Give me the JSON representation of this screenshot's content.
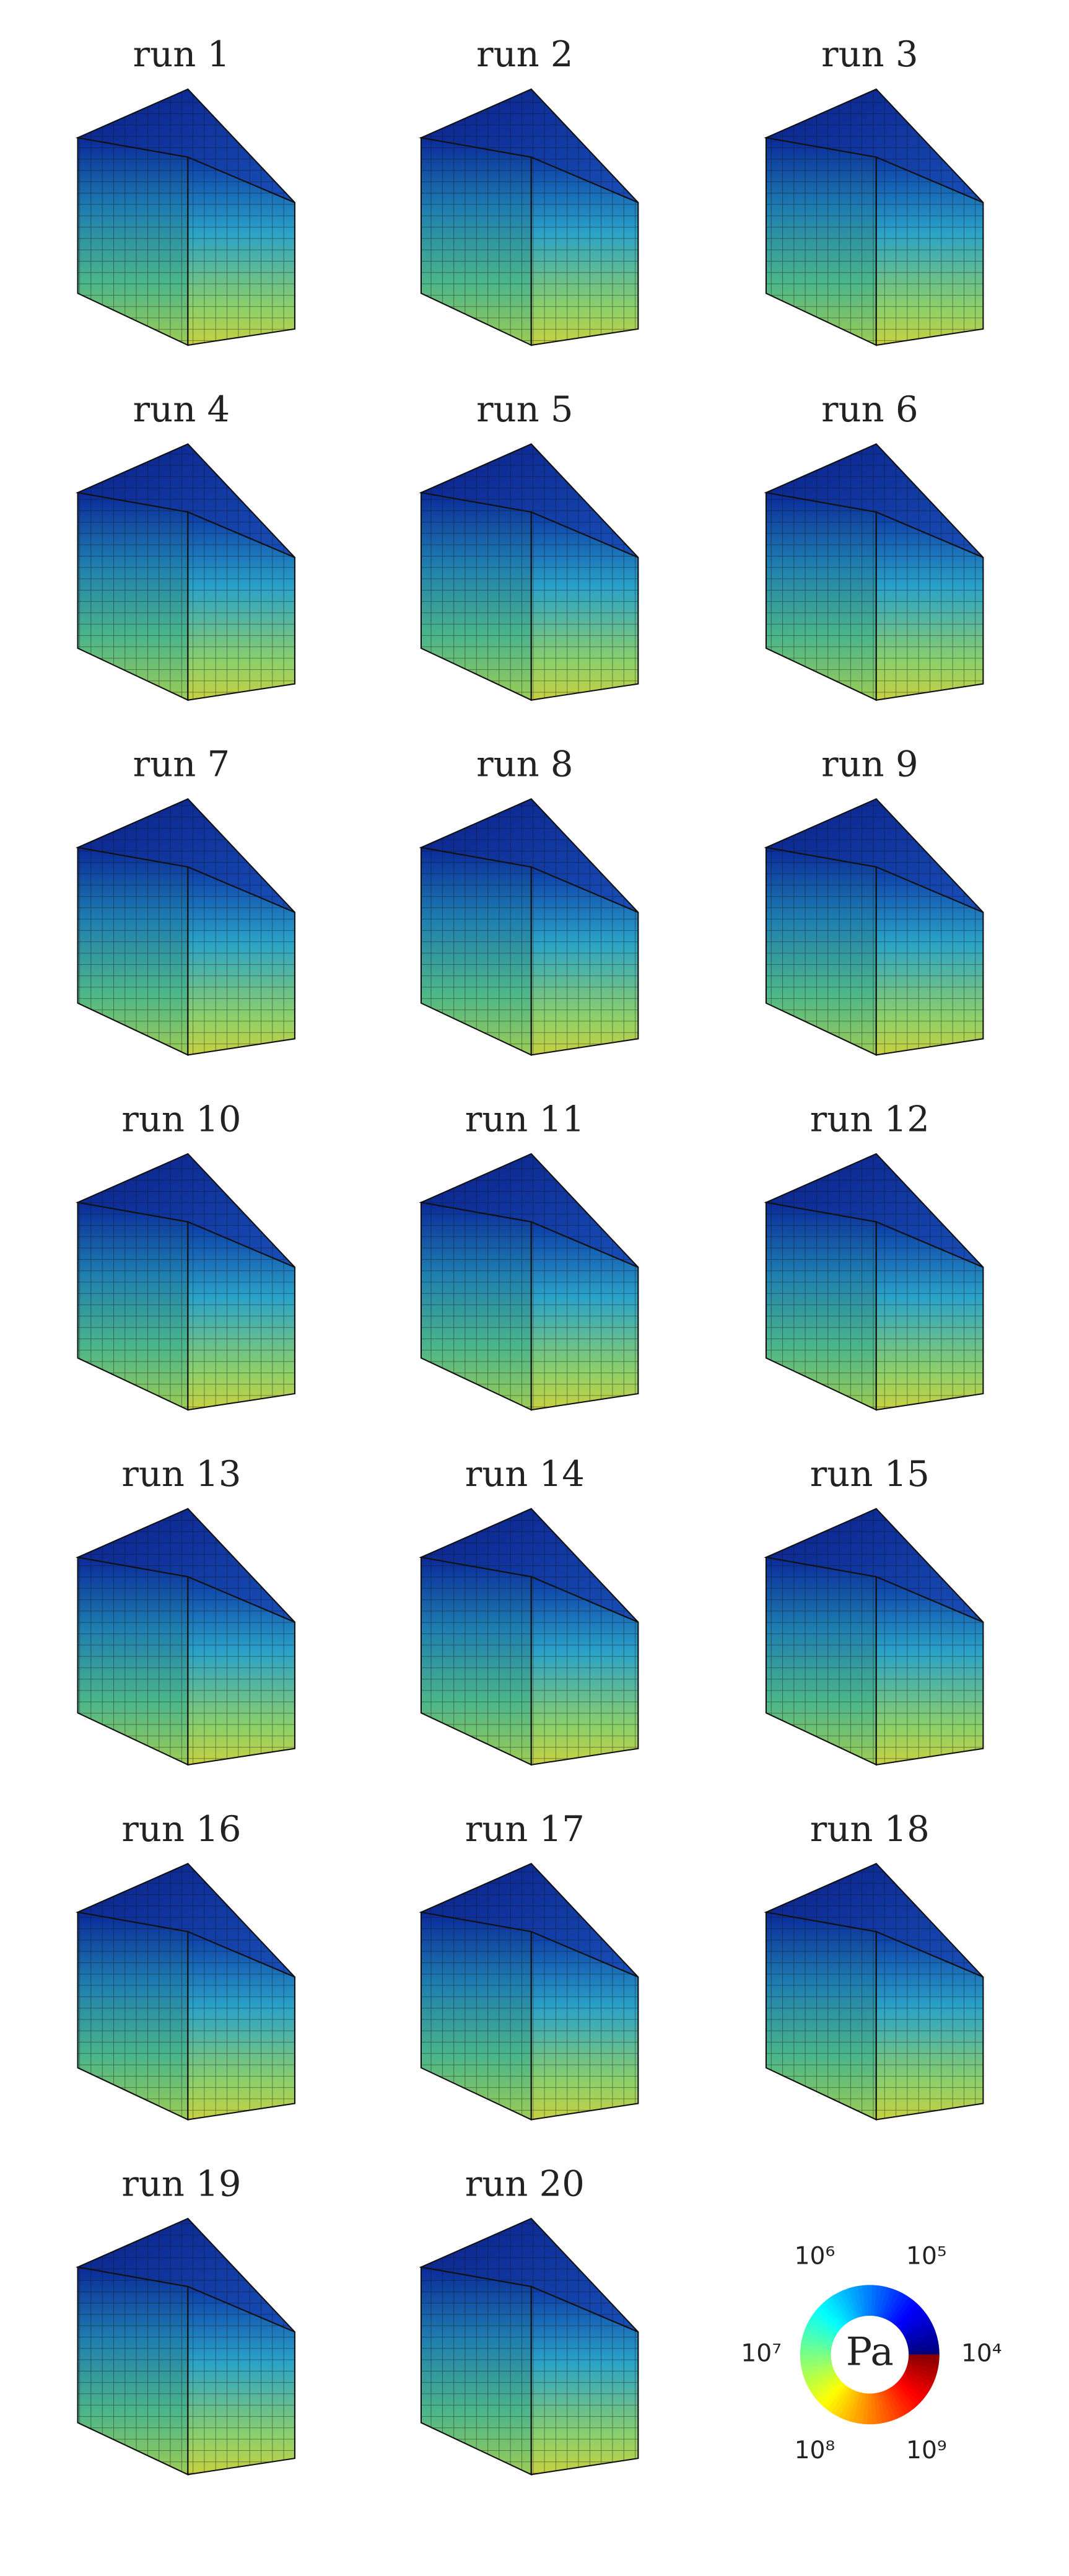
{
  "panels": [
    {
      "title": "run 1"
    },
    {
      "title": "run 2"
    },
    {
      "title": "run 3"
    },
    {
      "title": "run 4"
    },
    {
      "title": "run 5"
    },
    {
      "title": "run 6"
    },
    {
      "title": "run 7"
    },
    {
      "title": "run 8"
    },
    {
      "title": "run 9"
    },
    {
      "title": "run 10"
    },
    {
      "title": "run 11"
    },
    {
      "title": "run 12"
    },
    {
      "title": "run 13"
    },
    {
      "title": "run 14"
    },
    {
      "title": "run 15"
    },
    {
      "title": "run 16"
    },
    {
      "title": "run 17"
    },
    {
      "title": "run 18"
    },
    {
      "title": "run 19"
    },
    {
      "title": "run 20"
    }
  ],
  "legend": {
    "unit": "Pa",
    "labels": [
      {
        "text": "10⁶"
      },
      {
        "text": "10⁵"
      },
      {
        "text": "10⁷"
      },
      {
        "text": "10⁴"
      },
      {
        "text": "10⁸"
      },
      {
        "text": "10⁹"
      }
    ]
  }
}
